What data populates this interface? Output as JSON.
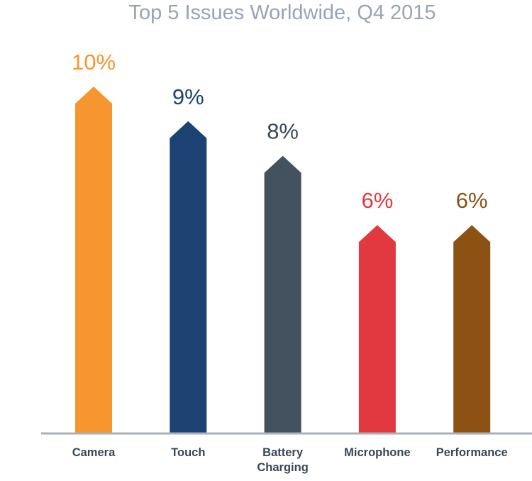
{
  "chart_data": {
    "type": "bar",
    "title": "Top 5 Issues Worldwide, Q4 2015",
    "xlabel": "",
    "ylabel": "",
    "ylim": [
      0,
      10
    ],
    "grid": false,
    "categories": [
      "Camera",
      "Touch",
      "Battery Charging",
      "Microphone",
      "Performance"
    ],
    "category_lines": [
      [
        "Camera"
      ],
      [
        "Touch"
      ],
      [
        "Battery",
        "Charging"
      ],
      [
        "Microphone"
      ],
      [
        "Performance"
      ]
    ],
    "values": [
      10,
      9,
      8,
      6,
      6
    ],
    "value_labels": [
      "10%",
      "9%",
      "8%",
      "6%",
      "6%"
    ],
    "colors": [
      "#f7962e",
      "#1c4274",
      "#44525f",
      "#e2383f",
      "#8b5214"
    ],
    "label_colors": [
      "#f7962e",
      "#1c4274",
      "#3b4754",
      "#e2383f",
      "#8b5214"
    ],
    "axis_color": "#a9b0ba",
    "category_label_color": "#3a4656"
  }
}
